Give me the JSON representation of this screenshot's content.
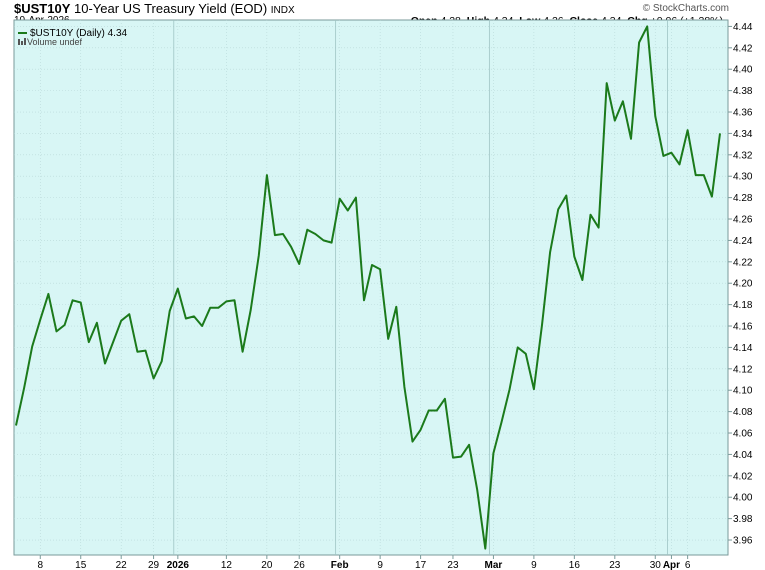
{
  "header": {
    "symbol": "$UST10Y",
    "name": "10-Year US Treasury Yield (EOD)",
    "exchange": "INDX",
    "date": "10-Apr-2026",
    "brand": "© StockCharts.com",
    "open_label": "Open",
    "open": "4.28",
    "high_label": "High",
    "high": "4.34",
    "low_label": "Low",
    "low": "4.26",
    "close_label": "Close",
    "close": "4.34",
    "chg_label": "Chg",
    "chg": "+0.06 (+1.38%)",
    "chg_arrow": "▲"
  },
  "legend": {
    "series": "$UST10Y (Daily) 4.34",
    "volume": "Volume undef"
  },
  "colors": {
    "plot_bg": "#d8f6f5",
    "line": "#1b7a1b",
    "grid": "#b8d8d8",
    "axis": "#7a9a9a"
  },
  "chart_data": {
    "type": "line",
    "title": "10-Year US Treasury Yield (EOD)",
    "ylim": [
      3.946,
      4.446
    ],
    "yticks": [
      3.96,
      3.98,
      4.0,
      4.02,
      4.04,
      4.06,
      4.08,
      4.1,
      4.12,
      4.14,
      4.16,
      4.18,
      4.2,
      4.22,
      4.24,
      4.26,
      4.28,
      4.3,
      4.32,
      4.34,
      4.36,
      4.38,
      4.4,
      4.42,
      4.44
    ],
    "xticks": [
      {
        "label": "8",
        "i": 3,
        "bold": false
      },
      {
        "label": "15",
        "i": 8,
        "bold": false
      },
      {
        "label": "22",
        "i": 13,
        "bold": false
      },
      {
        "label": "29",
        "i": 17,
        "bold": false
      },
      {
        "label": "2026",
        "i": 20,
        "bold": true
      },
      {
        "label": "12",
        "i": 26,
        "bold": false
      },
      {
        "label": "20",
        "i": 31,
        "bold": false
      },
      {
        "label": "26",
        "i": 35,
        "bold": false
      },
      {
        "label": "Feb",
        "i": 40,
        "bold": true
      },
      {
        "label": "9",
        "i": 45,
        "bold": false
      },
      {
        "label": "17",
        "i": 50,
        "bold": false
      },
      {
        "label": "23",
        "i": 54,
        "bold": false
      },
      {
        "label": "Mar",
        "i": 59,
        "bold": true
      },
      {
        "label": "9",
        "i": 64,
        "bold": false
      },
      {
        "label": "16",
        "i": 69,
        "bold": false
      },
      {
        "label": "23",
        "i": 74,
        "bold": false
      },
      {
        "label": "30",
        "i": 79,
        "bold": false
      },
      {
        "label": "Apr",
        "i": 81,
        "bold": true
      },
      {
        "label": "6",
        "i": 83,
        "bold": false
      }
    ],
    "major_lines": [
      20,
      40,
      59,
      81
    ],
    "series": [
      {
        "name": "$UST10Y (Daily)",
        "values": [
          4.067,
          4.102,
          4.141,
          4.166,
          4.19,
          4.155,
          4.161,
          4.184,
          4.182,
          4.145,
          4.163,
          4.125,
          4.145,
          4.165,
          4.171,
          4.136,
          4.137,
          4.111,
          4.127,
          4.174,
          4.195,
          4.167,
          4.169,
          4.16,
          4.177,
          4.177,
          4.183,
          4.184,
          4.136,
          4.175,
          4.226,
          4.301,
          4.245,
          4.246,
          4.234,
          4.218,
          4.25,
          4.246,
          4.24,
          4.238,
          4.279,
          4.268,
          4.28,
          4.184,
          4.217,
          4.213,
          4.148,
          4.178,
          4.103,
          4.052,
          4.063,
          4.081,
          4.081,
          4.092,
          4.037,
          4.038,
          4.049,
          4.007,
          3.952,
          4.041,
          4.07,
          4.101,
          4.14,
          4.134,
          4.101,
          4.161,
          4.229,
          4.269,
          4.282,
          4.225,
          4.203,
          4.264,
          4.252,
          4.387,
          4.352,
          4.37,
          4.335,
          4.425,
          4.44,
          4.356,
          4.319,
          4.322,
          4.311,
          4.343,
          4.301,
          4.301,
          4.281,
          4.34
        ]
      }
    ]
  }
}
